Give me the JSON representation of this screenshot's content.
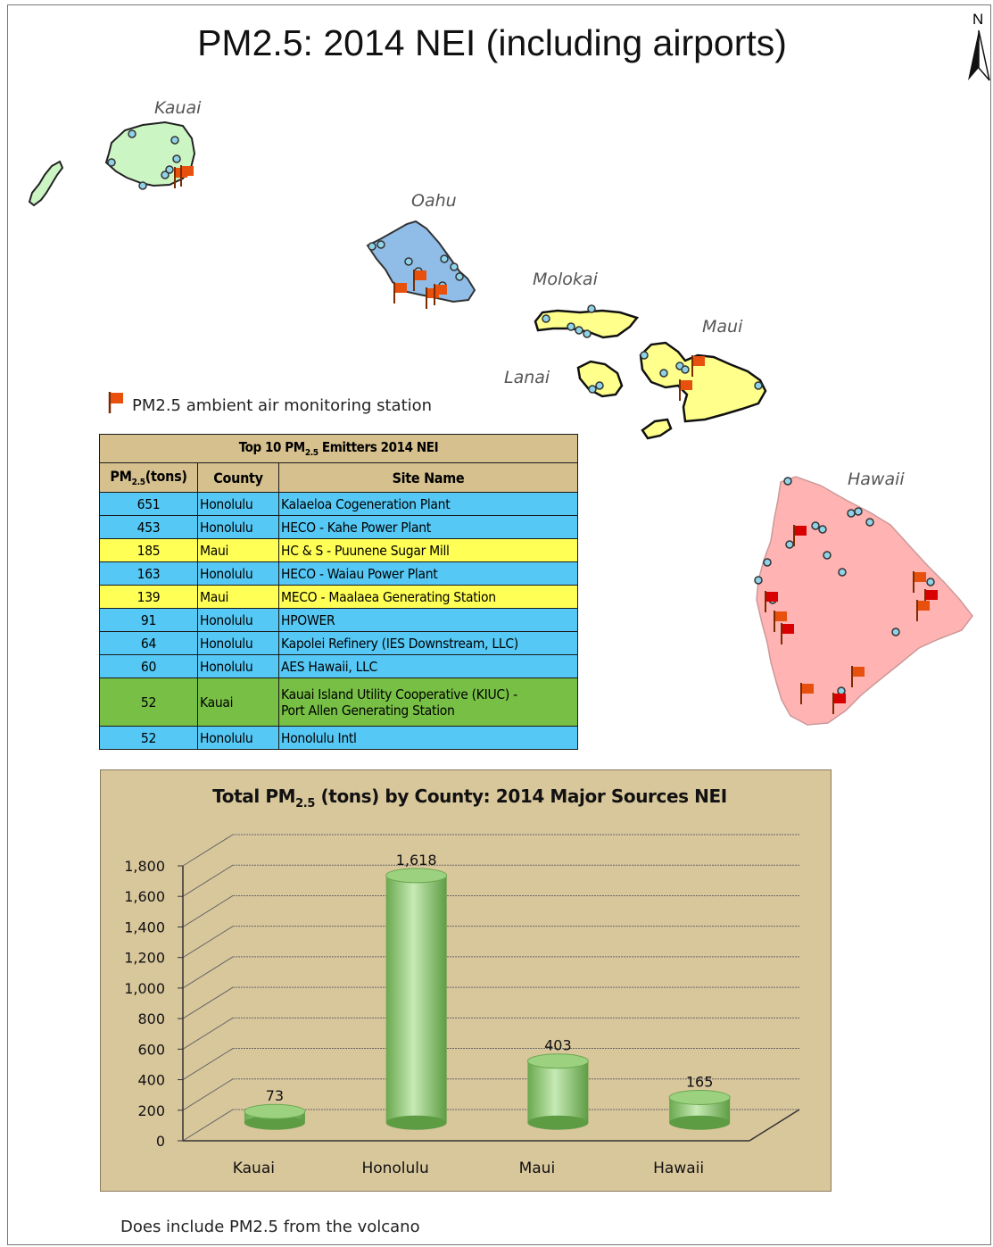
{
  "map": {
    "title": "PM2.5: 2014 NEI (including airports)",
    "north_arrow": "N",
    "islands": [
      {
        "name": "Kauai",
        "fill": "#ccf5c4"
      },
      {
        "name": "Oahu",
        "fill": "#8fbde8"
      },
      {
        "name": "Molokai",
        "fill": "#ffff8c"
      },
      {
        "name": "Lanai",
        "fill": "#ffff8c"
      },
      {
        "name": "Maui",
        "fill": "#ffff8c"
      },
      {
        "name": "Hawaii",
        "fill": "#ffb3b3"
      }
    ],
    "legend": {
      "icon": "orange-flag-icon",
      "label": "PM2.5 ambient air monitoring station"
    },
    "note": "Does include PM2.5 from the volcano"
  },
  "table": {
    "caption": "Top 10 PM2.5 Emitters 2014 NEI",
    "caption_parts": [
      "Top 10 PM",
      "2.5",
      " Emitters 2014 NEI"
    ],
    "headers": [
      "PM2.5(tons)",
      "County",
      "Site Name"
    ],
    "header_parts": [
      "PM",
      "2.5",
      "(tons)"
    ],
    "colors": {
      "Honolulu": "#55c8f5",
      "Maui": "#ffff55",
      "Kauai": "#77c045"
    },
    "rows": [
      {
        "pm": "651",
        "county": "Honolulu",
        "site": "Kalaeloa Cogeneration Plant"
      },
      {
        "pm": "453",
        "county": "Honolulu",
        "site": "HECO - Kahe Power Plant"
      },
      {
        "pm": "185",
        "county": "Maui",
        "site": "HC & S - Puunene Sugar Mill"
      },
      {
        "pm": "163",
        "county": "Honolulu",
        "site": "HECO - Waiau Power Plant"
      },
      {
        "pm": "139",
        "county": "Maui",
        "site": "MECO - Maalaea Generating Station"
      },
      {
        "pm": "91",
        "county": "Honolulu",
        "site": "HPOWER"
      },
      {
        "pm": "64",
        "county": "Honolulu",
        "site": "Kapolei Refinery (IES Downstream, LLC)"
      },
      {
        "pm": "60",
        "county": "Honolulu",
        "site": "AES Hawaii, LLC"
      },
      {
        "pm": "52",
        "county": "Kauai",
        "site": "Kauai Island Utility Cooperative (KIUC) -",
        "site2": "Port Allen Generating Station"
      },
      {
        "pm": "52",
        "county": "Honolulu",
        "site": "Honolulu Intl"
      }
    ]
  },
  "chart_data": {
    "type": "bar",
    "title": "Total PM2.5 (tons) by County: 2014 Major Sources NEI",
    "title_parts": [
      "Total PM",
      "2.5",
      " (tons) by County: 2014 Major Sources NEI"
    ],
    "categories": [
      "Kauai",
      "Honolulu",
      "Maui",
      "Hawaii"
    ],
    "values": [
      73,
      1618,
      403,
      165
    ],
    "value_labels": [
      "73",
      "1,618",
      "403",
      "165"
    ],
    "yticks": [
      "0",
      "200",
      "400",
      "600",
      "800",
      "1,000",
      "1,200",
      "1,400",
      "1,600",
      "1,800"
    ],
    "ylim": [
      0,
      1800
    ],
    "grid": true,
    "bar_color": "#9bd17f",
    "background": "#d9c79c"
  }
}
